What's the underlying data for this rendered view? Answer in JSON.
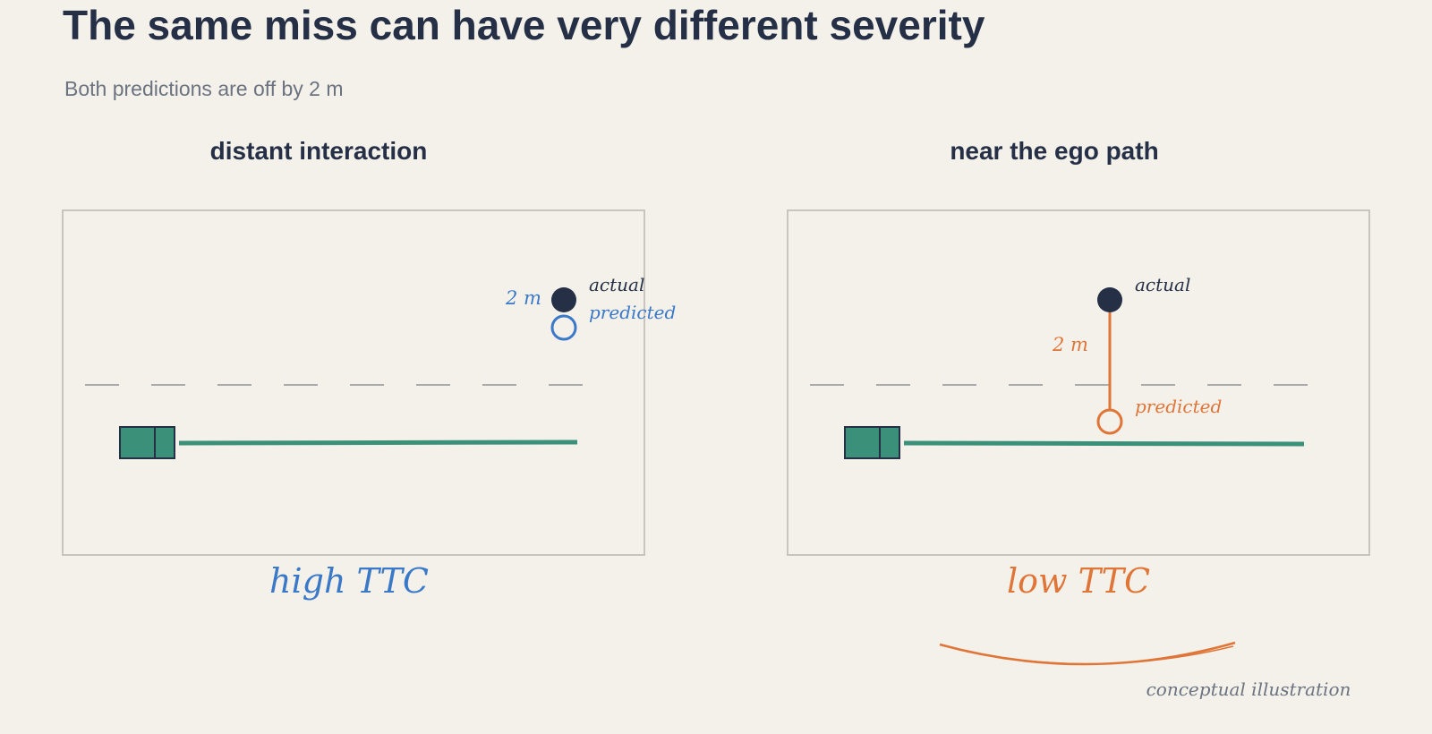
{
  "header": {
    "title": "The same miss can have very different severity",
    "subtitle": "Both predictions are off by 2 m"
  },
  "panels": [
    {
      "title": "distant interaction",
      "actual": "actual",
      "predicted": "predicted",
      "distance": "2 m",
      "ttc": "high TTC"
    },
    {
      "title": "near the ego path",
      "actual": "actual",
      "predicted": "predicted",
      "distance": "2 m",
      "ttc": "low TTC"
    }
  ],
  "footnote": "conceptual illustration"
}
